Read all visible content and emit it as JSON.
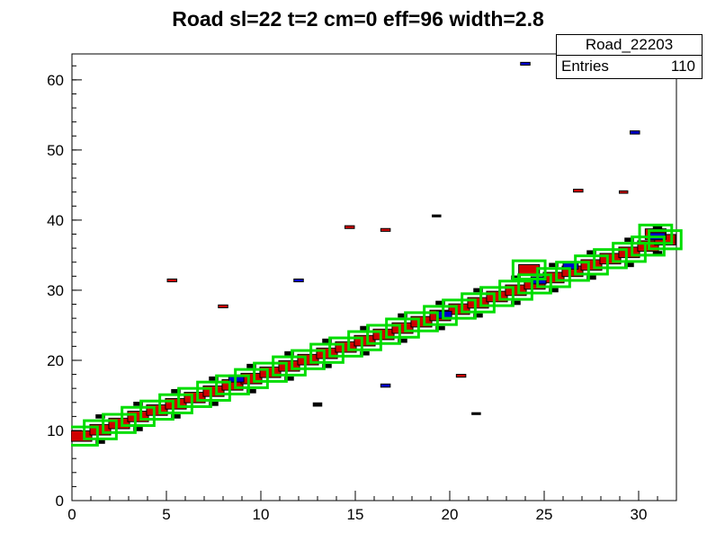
{
  "title": "Road sl=22 t=2 cm=0 eff=96 width=2.8",
  "stats_box": {
    "hist_name": "Road_22203",
    "entries_label": "Entries",
    "entries_value": "110"
  },
  "chart_data": {
    "type": "scatter",
    "marker": "box",
    "title": "Road sl=22 t=2 cm=0 eff=96 width=2.8",
    "xlabel": "",
    "ylabel": "",
    "xlim": [
      0,
      32
    ],
    "ylim": [
      0,
      63.7
    ],
    "x_major_ticks": [
      0,
      5,
      10,
      15,
      20,
      25,
      30
    ],
    "x_minor_step": 1,
    "y_major_ticks": [
      0,
      10,
      20,
      30,
      40,
      50,
      60
    ],
    "y_minor_step": 2,
    "grid": false,
    "legend": false,
    "colors": {
      "road_outline": "#00dd00",
      "hit_red": "#d10000",
      "hit_blue": "#0000cc",
      "hit_black": "#000000",
      "frame": "#000000"
    },
    "series": [
      {
        "name": "hits-black",
        "fill": "#000000",
        "stroke": "none",
        "w": 0.5,
        "h": 0.6,
        "points": [
          [
            1.5,
            8.4
          ],
          [
            1.5,
            12.0
          ],
          [
            3.5,
            10.2
          ],
          [
            3.5,
            13.8
          ],
          [
            5.5,
            12.0
          ],
          [
            5.5,
            15.6
          ],
          [
            7.5,
            13.8
          ],
          [
            7.5,
            17.4
          ],
          [
            9.5,
            15.6
          ],
          [
            9.5,
            19.2
          ],
          [
            11.5,
            17.4
          ],
          [
            11.5,
            21.0
          ],
          [
            13.5,
            19.2
          ],
          [
            13.5,
            22.8
          ],
          [
            15.5,
            21.0
          ],
          [
            15.5,
            24.6
          ],
          [
            17.5,
            22.8
          ],
          [
            17.5,
            26.4
          ],
          [
            19.5,
            24.6
          ],
          [
            19.5,
            28.2
          ],
          [
            21.5,
            26.4
          ],
          [
            21.5,
            30.0
          ],
          [
            23.5,
            28.2
          ],
          [
            23.5,
            31.8
          ],
          [
            25.5,
            30.0
          ],
          [
            25.5,
            33.6
          ],
          [
            27.5,
            31.8
          ],
          [
            27.5,
            35.4
          ],
          [
            29.5,
            33.6
          ],
          [
            29.5,
            37.2
          ],
          [
            31.0,
            35.3
          ],
          [
            31.0,
            39.0
          ],
          [
            19.3,
            40.6,
            0.5,
            0.4
          ],
          [
            13.0,
            13.7
          ],
          [
            21.4,
            12.4,
            0.5,
            0.4
          ]
        ]
      },
      {
        "name": "hits-red",
        "fill": "#d10000",
        "stroke": "#000000",
        "stroke_width": 1,
        "w": 1.1,
        "h": 1.5,
        "points": [
          [
            0.5,
            9.2
          ],
          [
            1.5,
            10.1
          ],
          [
            2.5,
            11.0
          ],
          [
            3.5,
            12.0
          ],
          [
            4.5,
            12.9
          ],
          [
            5.5,
            13.8
          ],
          [
            6.5,
            14.7
          ],
          [
            7.5,
            15.6
          ],
          [
            8.5,
            16.5
          ],
          [
            9.5,
            17.4
          ],
          [
            10.5,
            18.3
          ],
          [
            11.5,
            19.2
          ],
          [
            12.5,
            20.1
          ],
          [
            13.5,
            21.0
          ],
          [
            14.5,
            21.9
          ],
          [
            15.5,
            22.8
          ],
          [
            16.5,
            23.7
          ],
          [
            17.5,
            24.6
          ],
          [
            18.5,
            25.5
          ],
          [
            19.5,
            26.4
          ],
          [
            20.5,
            27.3
          ],
          [
            21.5,
            28.2
          ],
          [
            22.5,
            29.1
          ],
          [
            23.5,
            30.0
          ],
          [
            24.5,
            30.9
          ],
          [
            25.5,
            31.8
          ],
          [
            26.5,
            32.7
          ],
          [
            27.5,
            33.6
          ],
          [
            28.5,
            34.5
          ],
          [
            29.5,
            35.4
          ],
          [
            30.5,
            36.3
          ],
          [
            31.4,
            37.2
          ],
          [
            24.2,
            32.9
          ],
          [
            30.9,
            38.0
          ],
          [
            5.3,
            31.4,
            0.5,
            0.4
          ],
          [
            14.7,
            39.0,
            0.5,
            0.4
          ],
          [
            16.6,
            38.6,
            0.5,
            0.4
          ],
          [
            26.8,
            44.2,
            0.5,
            0.4
          ],
          [
            29.2,
            44.0,
            0.45,
            0.35
          ],
          [
            8.0,
            27.7,
            0.5,
            0.4
          ],
          [
            20.6,
            17.8,
            0.5,
            0.4
          ]
        ]
      },
      {
        "name": "hits-blue",
        "fill": "#0000cc",
        "stroke": "#000000",
        "stroke_width": 1,
        "w": 0.8,
        "h": 1.0,
        "points": [
          [
            8.7,
            17.4
          ],
          [
            19.7,
            26.5
          ],
          [
            24.7,
            31.4
          ],
          [
            26.4,
            33.5
          ],
          [
            31.0,
            37.7
          ],
          [
            24.0,
            62.3,
            0.5,
            0.4
          ],
          [
            29.8,
            52.5,
            0.5,
            0.45
          ],
          [
            12.0,
            31.4,
            0.5,
            0.4
          ],
          [
            16.6,
            16.4,
            0.5,
            0.45
          ]
        ]
      },
      {
        "name": "road-outline",
        "fill": "none",
        "stroke": "#00dd00",
        "stroke_width": 3,
        "w": 1.7,
        "h": 2.6,
        "points": [
          [
            0.5,
            9.2
          ],
          [
            1.5,
            10.1
          ],
          [
            2.5,
            11.0
          ],
          [
            3.5,
            12.0
          ],
          [
            4.5,
            12.9
          ],
          [
            5.5,
            13.8
          ],
          [
            6.5,
            14.7
          ],
          [
            7.5,
            15.6
          ],
          [
            8.5,
            16.5
          ],
          [
            9.5,
            17.4
          ],
          [
            10.5,
            18.3
          ],
          [
            11.5,
            19.2
          ],
          [
            12.5,
            20.1
          ],
          [
            13.5,
            21.0
          ],
          [
            14.5,
            21.9
          ],
          [
            15.5,
            22.8
          ],
          [
            16.5,
            23.7
          ],
          [
            17.5,
            24.6
          ],
          [
            18.5,
            25.5
          ],
          [
            19.5,
            26.4
          ],
          [
            20.5,
            27.3
          ],
          [
            21.5,
            28.2
          ],
          [
            22.5,
            29.1
          ],
          [
            23.5,
            30.0
          ],
          [
            24.5,
            30.9
          ],
          [
            25.5,
            31.8
          ],
          [
            26.5,
            32.7
          ],
          [
            27.5,
            33.6
          ],
          [
            28.5,
            34.5
          ],
          [
            29.5,
            35.4
          ],
          [
            30.5,
            36.3
          ],
          [
            31.4,
            37.2
          ],
          [
            24.2,
            32.9
          ],
          [
            30.9,
            38.0
          ]
        ]
      }
    ]
  }
}
